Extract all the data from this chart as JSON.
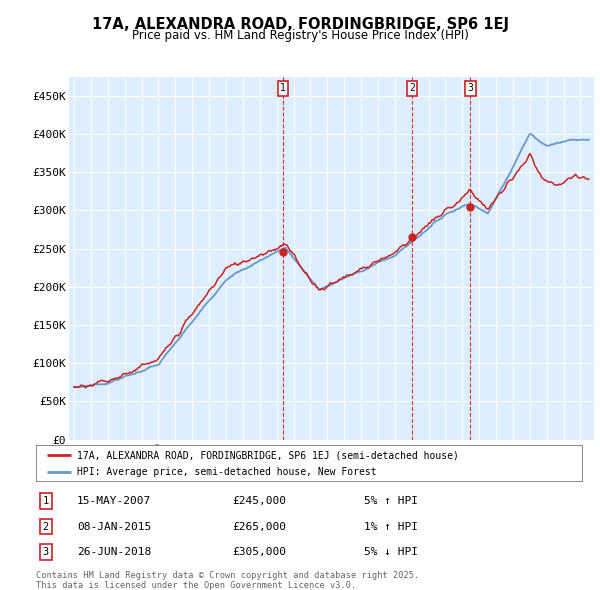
{
  "title": "17A, ALEXANDRA ROAD, FORDINGBRIDGE, SP6 1EJ",
  "subtitle": "Price paid vs. HM Land Registry's House Price Index (HPI)",
  "hpi_label": "HPI: Average price, semi-detached house, New Forest",
  "property_label": "17A, ALEXANDRA ROAD, FORDINGBRIDGE, SP6 1EJ (semi-detached house)",
  "ylim": [
    0,
    475000
  ],
  "yticks": [
    0,
    50000,
    100000,
    150000,
    200000,
    250000,
    300000,
    350000,
    400000,
    450000
  ],
  "ytick_labels": [
    "£0",
    "£50K",
    "£100K",
    "£150K",
    "£200K",
    "£250K",
    "£300K",
    "£350K",
    "£400K",
    "£450K"
  ],
  "background_color": "#ffffff",
  "plot_bg_color": "#ddeeff",
  "line_color_hpi": "#6699cc",
  "line_color_price": "#cc2222",
  "purchases": [
    {
      "label": "1",
      "date": "15-MAY-2007",
      "price": 245000,
      "pct": "5%",
      "direction": "↑",
      "year": 2007.375
    },
    {
      "label": "2",
      "date": "08-JAN-2015",
      "price": 265000,
      "pct": "1%",
      "direction": "↑",
      "year": 2015.02
    },
    {
      "label": "3",
      "date": "26-JUN-2018",
      "price": 305000,
      "pct": "5%",
      "direction": "↓",
      "year": 2018.48
    }
  ],
  "footnote": "Contains HM Land Registry data © Crown copyright and database right 2025.\nThis data is licensed under the Open Government Licence v3.0.",
  "x_start_year": 1995,
  "x_end_year": 2025
}
